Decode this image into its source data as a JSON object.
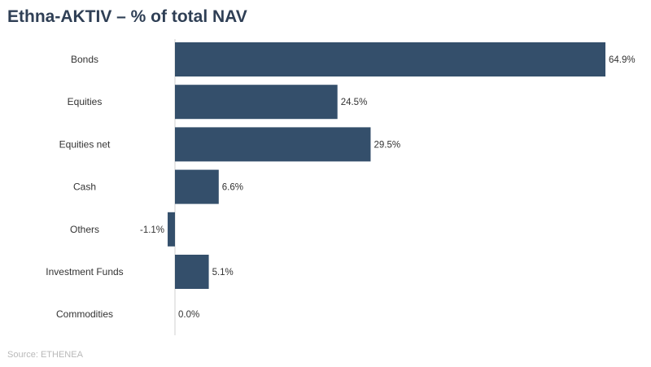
{
  "title": "Ethna-AKTIV – % of total NAV",
  "source": "Source: ETHENEA",
  "colors": {
    "bar": "#344f6b",
    "axis": "#d0d0d0",
    "text": "#333333",
    "title": "#2f3f55",
    "source": "#b9b9b9"
  },
  "chart_data": {
    "type": "bar",
    "orientation": "horizontal",
    "categories": [
      "Bonds",
      "Equities",
      "Equities net",
      "Cash",
      "Others",
      "Investment Funds",
      "Commodities"
    ],
    "values": [
      64.9,
      24.5,
      29.5,
      6.6,
      -1.1,
      5.1,
      0.0
    ],
    "value_labels": [
      "64.9%",
      "24.5%",
      "29.5%",
      "6.6%",
      "-1.1%",
      "5.1%",
      "0.0%"
    ],
    "xlim": [
      -1.1,
      64.9
    ],
    "grid": false,
    "legend": "none"
  }
}
